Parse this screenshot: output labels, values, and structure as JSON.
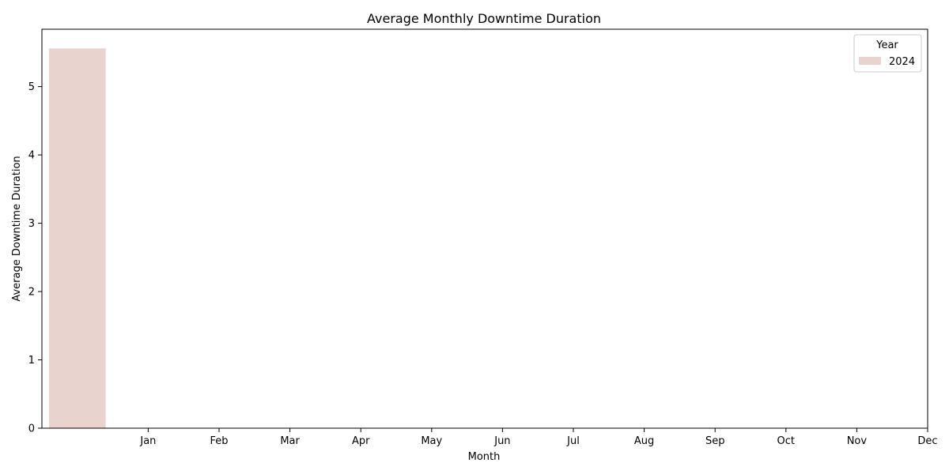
{
  "chart_data": {
    "type": "bar",
    "title": "Average Monthly Downtime Duration",
    "xlabel": "Month",
    "ylabel": "Average Downtime Duration",
    "ylim": [
      0,
      5.84
    ],
    "yticks": [
      0,
      1,
      2,
      3,
      4,
      5
    ],
    "xticks": [
      "Jan",
      "Feb",
      "Mar",
      "Apr",
      "May",
      "Jun",
      "Jul",
      "Aug",
      "Sep",
      "Oct",
      "Nov",
      "Dec"
    ],
    "categories": [
      "Jan"
    ],
    "series": [
      {
        "name": "2024",
        "values": [
          5.56
        ],
        "color": "#e8d3cf"
      }
    ],
    "legend": {
      "title": "Year",
      "placement": "top-right"
    },
    "grid": false
  }
}
